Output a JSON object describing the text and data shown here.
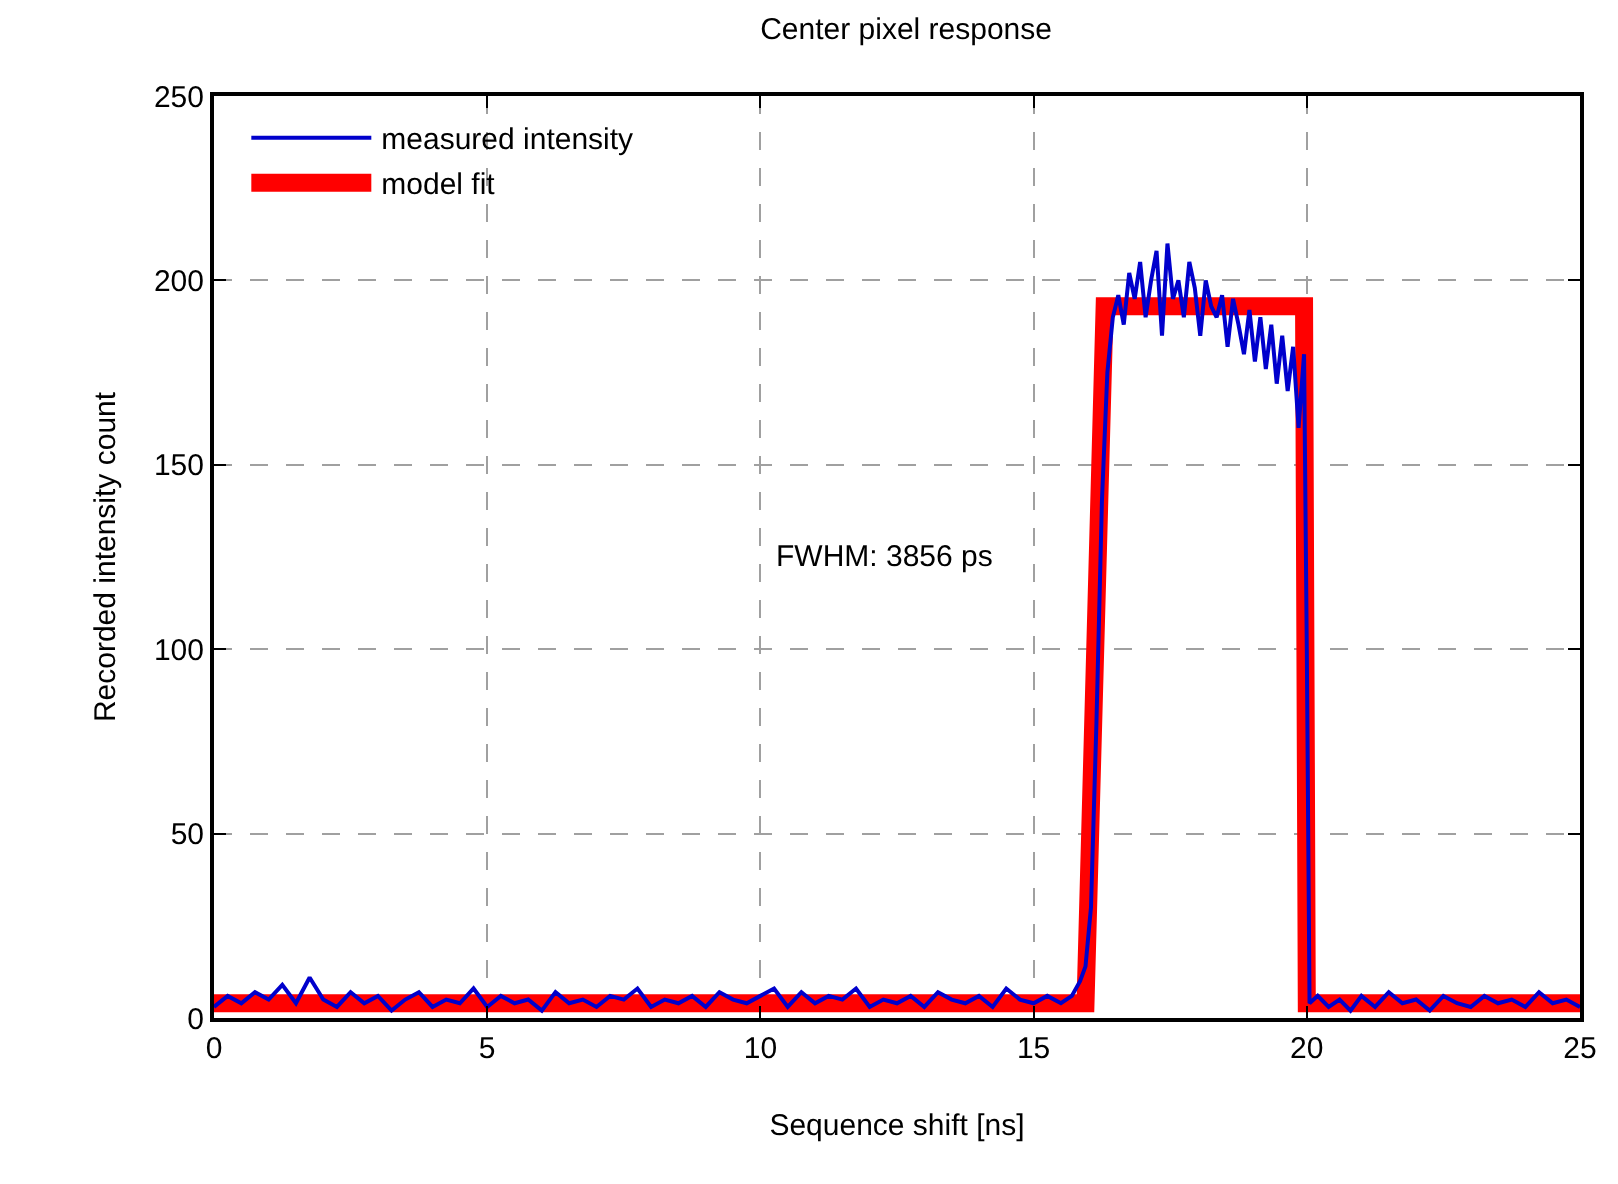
{
  "chart_data": {
    "type": "line",
    "title": "Center pixel response",
    "xlabel": "Sequence shift [ns]",
    "ylabel": "Recorded intensity count",
    "xlim": [
      0,
      25
    ],
    "xticks": [
      0,
      5,
      10,
      15,
      20,
      25
    ],
    "ylim": [
      0,
      250
    ],
    "yticks": [
      0,
      50,
      100,
      150,
      200,
      250
    ],
    "grid": true,
    "legend": "top left",
    "marker": "none",
    "annotations": [
      "FWHM: 3856 ps"
    ],
    "series": [
      {
        "name": "measured intensity",
        "color": "#0000cc",
        "x": [
          0,
          0.25,
          0.5,
          0.75,
          1,
          1.25,
          1.5,
          1.75,
          2,
          2.25,
          2.5,
          2.75,
          3,
          3.25,
          3.5,
          3.75,
          4,
          4.25,
          4.5,
          4.75,
          5,
          5.25,
          5.5,
          5.75,
          6,
          6.25,
          6.5,
          6.75,
          7,
          7.25,
          7.5,
          7.75,
          8,
          8.25,
          8.5,
          8.75,
          9,
          9.25,
          9.5,
          9.75,
          10,
          10.25,
          10.5,
          10.75,
          11,
          11.25,
          11.5,
          11.75,
          12,
          12.25,
          12.5,
          12.75,
          13,
          13.25,
          13.5,
          13.75,
          14,
          14.25,
          14.5,
          14.75,
          15,
          15.25,
          15.5,
          15.7,
          15.85,
          15.95,
          16.05,
          16.15,
          16.25,
          16.35,
          16.45,
          16.55,
          16.65,
          16.75,
          16.85,
          16.95,
          17.05,
          17.15,
          17.25,
          17.35,
          17.45,
          17.55,
          17.65,
          17.75,
          17.85,
          17.95,
          18.05,
          18.15,
          18.25,
          18.35,
          18.45,
          18.55,
          18.65,
          18.75,
          18.85,
          18.95,
          19.05,
          19.15,
          19.25,
          19.35,
          19.45,
          19.55,
          19.65,
          19.75,
          19.85,
          19.95,
          20.0,
          20.05,
          20.2,
          20.4,
          20.6,
          20.8,
          21,
          21.25,
          21.5,
          21.75,
          22,
          22.25,
          22.5,
          22.75,
          23,
          23.25,
          23.5,
          23.75,
          24,
          24.25,
          24.5,
          24.75,
          25
        ],
        "values": [
          3,
          6,
          4,
          7,
          5,
          9,
          4,
          11,
          5,
          3,
          7,
          4,
          6,
          2,
          5,
          7,
          3,
          5,
          4,
          8,
          3,
          6,
          4,
          5,
          2,
          7,
          4,
          5,
          3,
          6,
          5,
          8,
          3,
          5,
          4,
          6,
          3,
          7,
          5,
          4,
          6,
          8,
          3,
          7,
          4,
          6,
          5,
          8,
          3,
          5,
          4,
          6,
          3,
          7,
          5,
          4,
          6,
          3,
          8,
          5,
          4,
          6,
          4,
          6,
          10,
          14,
          30,
          80,
          140,
          175,
          190,
          196,
          188,
          202,
          195,
          205,
          190,
          200,
          208,
          185,
          210,
          195,
          200,
          190,
          205,
          198,
          185,
          200,
          193,
          190,
          196,
          182,
          195,
          188,
          180,
          192,
          178,
          190,
          176,
          188,
          172,
          185,
          170,
          182,
          160,
          180,
          100,
          4,
          6,
          3,
          5,
          2,
          6,
          3,
          7,
          4,
          5,
          2,
          6,
          4,
          3,
          6,
          4,
          5,
          3,
          7,
          4,
          5,
          3
        ]
      },
      {
        "name": "model fit",
        "color": "#ff0000",
        "x": [
          0,
          15.95,
          16.3,
          19.95,
          20.0,
          25
        ],
        "values": [
          4,
          4,
          193,
          193,
          4,
          4
        ]
      }
    ]
  }
}
